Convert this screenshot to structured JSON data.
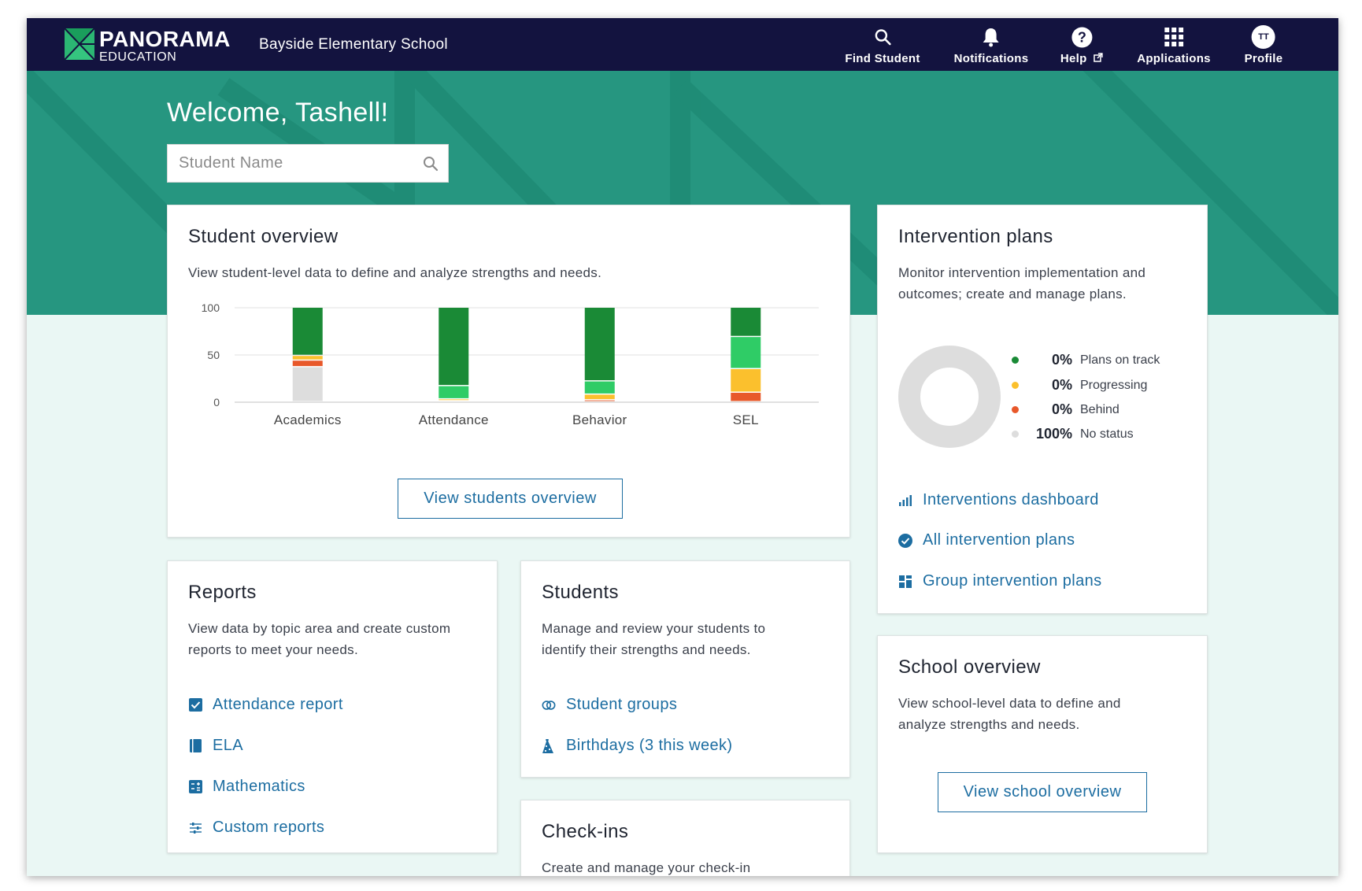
{
  "nav": {
    "brand_main": "PANORAMA",
    "brand_sub": "EDUCATION",
    "school": "Bayside Elementary School",
    "items": [
      {
        "label": "Find Student",
        "icon": "search-icon"
      },
      {
        "label": "Notifications",
        "icon": "bell-icon"
      },
      {
        "label": "Help",
        "icon": "help-icon"
      },
      {
        "label": "Applications",
        "icon": "grid-icon"
      },
      {
        "label": "Profile",
        "icon": "avatar"
      }
    ],
    "avatar_initials": "TT"
  },
  "hero": {
    "welcome": "Welcome, Tashell!",
    "search_placeholder": "Student Name"
  },
  "student_overview": {
    "title": "Student overview",
    "description": "View student-level data to define and analyze strengths and needs.",
    "button": "View students overview"
  },
  "chart_data": {
    "type": "bar",
    "stacked": true,
    "categories": [
      "Academics",
      "Attendance",
      "Behavior",
      "SEL"
    ],
    "yticks": [
      0,
      50,
      100
    ],
    "ylim": [
      0,
      100
    ],
    "series": [
      {
        "color": "#dddddd",
        "values": [
          37,
          0,
          0,
          0
        ]
      },
      {
        "color": "#e8582a",
        "values": [
          7,
          1,
          2,
          10
        ]
      },
      {
        "color": "#fbc02d",
        "values": [
          5,
          2,
          6,
          25
        ]
      },
      {
        "color": "#2fcc66",
        "values": [
          0,
          14,
          14,
          34
        ]
      },
      {
        "color": "#1a8a36",
        "values": [
          51,
          83,
          78,
          31
        ]
      }
    ],
    "grid": true
  },
  "intervention_plans": {
    "title": "Intervention plans",
    "description": "Monitor intervention implementation and outcomes; create and manage plans.",
    "legend": [
      {
        "pct": "0%",
        "label": "Plans on track",
        "color": "#1a8a36"
      },
      {
        "pct": "0%",
        "label": "Progressing",
        "color": "#fbc02d"
      },
      {
        "pct": "0%",
        "label": "Behind",
        "color": "#e8582a"
      },
      {
        "pct": "100%",
        "label": "No status",
        "color": "#dddddd"
      }
    ],
    "links": [
      "Interventions dashboard",
      "All intervention plans",
      "Group intervention plans"
    ]
  },
  "reports": {
    "title": "Reports",
    "description": "View data by topic area and create custom reports to meet your needs.",
    "links": [
      "Attendance report",
      "ELA",
      "Mathematics",
      "Custom reports"
    ]
  },
  "students": {
    "title": "Students",
    "description": "Manage and review your students to identify their strengths and needs.",
    "links": [
      "Student groups",
      "Birthdays (3 this week)"
    ]
  },
  "checkins": {
    "title": "Check-ins",
    "description": "Create and manage your check-in"
  },
  "school_overview": {
    "title": "School overview",
    "description": "View school-level data to define and analyze strengths and needs.",
    "button": "View school overview"
  },
  "colors": {
    "nav_bg": "#13133f",
    "hero_bg": "#269680",
    "link": "#1c6da1",
    "page_bg": "#eaf7f4"
  }
}
